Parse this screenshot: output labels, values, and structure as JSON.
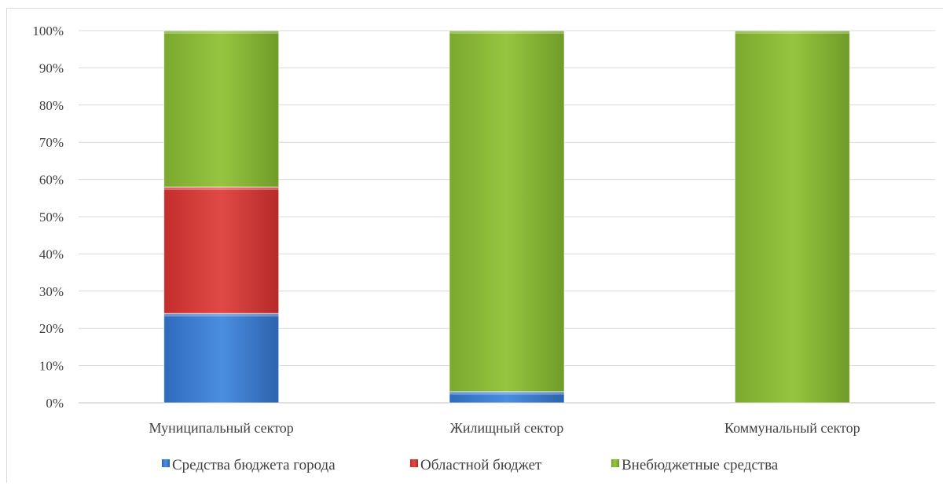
{
  "chart_data": {
    "type": "bar",
    "stacked": true,
    "percent": true,
    "categories": [
      "Муниципальный сектор",
      "Жилищный сектор",
      "Коммунальный сектор"
    ],
    "series": [
      {
        "name": "Средства бюджета города",
        "color": "#3c7fd3",
        "values": [
          24,
          3,
          0
        ]
      },
      {
        "name": "Областной бюджет",
        "color": "#d63b38",
        "values": [
          34,
          0,
          0
        ]
      },
      {
        "name": "Внебюджетные средства",
        "color": "#8ebf3a",
        "values": [
          42,
          97,
          100
        ]
      }
    ],
    "y_ticks": [
      "0%",
      "10%",
      "20%",
      "30%",
      "40%",
      "50%",
      "60%",
      "70%",
      "80%",
      "90%",
      "100%"
    ],
    "ylim": [
      0,
      100
    ],
    "grid": true,
    "legend": "bottom"
  }
}
